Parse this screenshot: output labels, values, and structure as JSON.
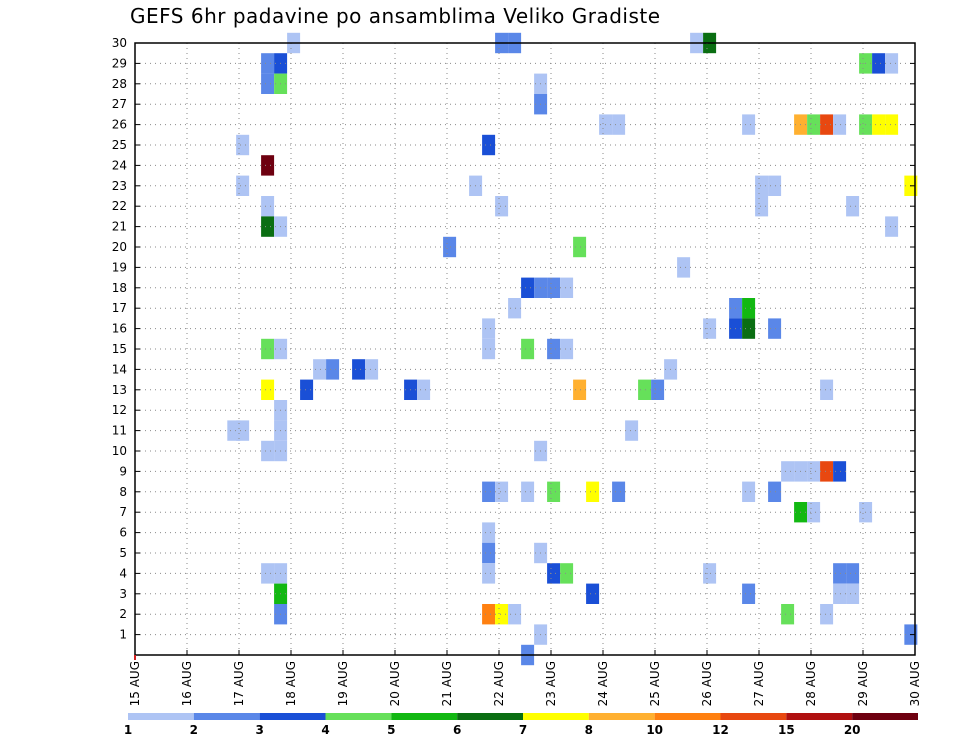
{
  "chart_data": {
    "type": "heatmap",
    "title": "GEFS 6hr padavine po ansamblima Veliko Gradiste",
    "y_ticks": [
      "1",
      "2",
      "3",
      "4",
      "5",
      "6",
      "7",
      "8",
      "9",
      "10",
      "11",
      "12",
      "13",
      "14",
      "15",
      "16",
      "17",
      "18",
      "19",
      "20",
      "21",
      "22",
      "23",
      "24",
      "25",
      "26",
      "27",
      "28",
      "29",
      "30"
    ],
    "x_ticks": [
      "15 AUG",
      "16 AUG",
      "17 AUG",
      "18 AUG",
      "19 AUG",
      "20 AUG",
      "21 AUG",
      "22 AUG",
      "23 AUG",
      "24 AUG",
      "25 AUG",
      "26 AUG",
      "27 AUG",
      "28 AUG",
      "29 AUG",
      "30 AUG"
    ],
    "xlim_days": [
      15,
      30
    ],
    "ylim": [
      0,
      30
    ],
    "grid": true,
    "legend": {
      "placement": "bottom",
      "labels": [
        "1",
        "2",
        "3",
        "4",
        "5",
        "6",
        "7",
        "8",
        "10",
        "12",
        "15",
        "20"
      ],
      "colors": [
        "#aec4f4",
        "#5a87e8",
        "#1a4fd6",
        "#66e05a",
        "#12b812",
        "#0a6e12",
        "#ffff00",
        "#ffb030",
        "#ff8010",
        "#e84810",
        "#b01010",
        "#6e0010"
      ]
    },
    "cells": [
      {
        "x": 17.07,
        "y": 23,
        "c": 0
      },
      {
        "x": 17.07,
        "y": 25,
        "c": 0
      },
      {
        "x": 16.9,
        "y": 11,
        "c": 0
      },
      {
        "x": 17.07,
        "y": 11,
        "c": 0
      },
      {
        "x": 17.55,
        "y": 29,
        "c": 1
      },
      {
        "x": 17.55,
        "y": 28,
        "c": 1
      },
      {
        "x": 17.55,
        "y": 24,
        "c": 11
      },
      {
        "x": 17.55,
        "y": 22,
        "c": 0
      },
      {
        "x": 17.55,
        "y": 21,
        "c": 5
      },
      {
        "x": 17.55,
        "y": 15,
        "c": 3
      },
      {
        "x": 17.55,
        "y": 13,
        "c": 6
      },
      {
        "x": 17.55,
        "y": 10,
        "c": 0
      },
      {
        "x": 17.55,
        "y": 4,
        "c": 0
      },
      {
        "x": 17.8,
        "y": 29,
        "c": 2
      },
      {
        "x": 17.8,
        "y": 28,
        "c": 3
      },
      {
        "x": 17.8,
        "y": 21,
        "c": 0
      },
      {
        "x": 17.8,
        "y": 15,
        "c": 0
      },
      {
        "x": 17.8,
        "y": 12,
        "c": 0
      },
      {
        "x": 17.8,
        "y": 11,
        "c": 0
      },
      {
        "x": 17.8,
        "y": 10,
        "c": 0
      },
      {
        "x": 17.8,
        "y": 4,
        "c": 0
      },
      {
        "x": 17.8,
        "y": 3,
        "c": 4
      },
      {
        "x": 17.8,
        "y": 2,
        "c": 1
      },
      {
        "x": 18.05,
        "y": 30,
        "c": 0
      },
      {
        "x": 18.3,
        "y": 13,
        "c": 2
      },
      {
        "x": 18.55,
        "y": 14,
        "c": 0
      },
      {
        "x": 18.8,
        "y": 14,
        "c": 1
      },
      {
        "x": 19.3,
        "y": 14,
        "c": 2
      },
      {
        "x": 19.55,
        "y": 14,
        "c": 0
      },
      {
        "x": 20.3,
        "y": 13,
        "c": 2
      },
      {
        "x": 20.55,
        "y": 13,
        "c": 0
      },
      {
        "x": 21.05,
        "y": 20,
        "c": 1
      },
      {
        "x": 21.55,
        "y": 23,
        "c": 0
      },
      {
        "x": 21.8,
        "y": 25,
        "c": 2
      },
      {
        "x": 21.8,
        "y": 16,
        "c": 0
      },
      {
        "x": 21.8,
        "y": 15,
        "c": 0
      },
      {
        "x": 21.8,
        "y": 8,
        "c": 1
      },
      {
        "x": 21.8,
        "y": 6,
        "c": 0
      },
      {
        "x": 21.8,
        "y": 5,
        "c": 1
      },
      {
        "x": 21.8,
        "y": 4,
        "c": 0
      },
      {
        "x": 21.8,
        "y": 2,
        "c": 8
      },
      {
        "x": 22.05,
        "y": 30,
        "c": 1
      },
      {
        "x": 22.05,
        "y": 22,
        "c": 0
      },
      {
        "x": 22.05,
        "y": 8,
        "c": 0
      },
      {
        "x": 22.05,
        "y": 2,
        "c": 6
      },
      {
        "x": 22.3,
        "y": 30,
        "c": 1
      },
      {
        "x": 22.3,
        "y": 17,
        "c": 0
      },
      {
        "x": 22.3,
        "y": 2,
        "c": 0
      },
      {
        "x": 22.55,
        "y": 18,
        "c": 2
      },
      {
        "x": 22.55,
        "y": 15,
        "c": 3
      },
      {
        "x": 22.55,
        "y": 8,
        "c": 0
      },
      {
        "x": 22.55,
        "y": 0,
        "c": 1
      },
      {
        "x": 22.8,
        "y": 28,
        "c": 0
      },
      {
        "x": 22.8,
        "y": 27,
        "c": 1
      },
      {
        "x": 22.8,
        "y": 18,
        "c": 1
      },
      {
        "x": 22.8,
        "y": 10,
        "c": 0
      },
      {
        "x": 22.8,
        "y": 5,
        "c": 0
      },
      {
        "x": 22.8,
        "y": 1,
        "c": 0
      },
      {
        "x": 23.05,
        "y": 18,
        "c": 1
      },
      {
        "x": 23.05,
        "y": 15,
        "c": 1
      },
      {
        "x": 23.05,
        "y": 8,
        "c": 3
      },
      {
        "x": 23.05,
        "y": 4,
        "c": 2
      },
      {
        "x": 23.3,
        "y": 18,
        "c": 0
      },
      {
        "x": 23.3,
        "y": 15,
        "c": 0
      },
      {
        "x": 23.3,
        "y": 4,
        "c": 3
      },
      {
        "x": 23.55,
        "y": 20,
        "c": 3
      },
      {
        "x": 23.55,
        "y": 13,
        "c": 7
      },
      {
        "x": 23.8,
        "y": 8,
        "c": 6
      },
      {
        "x": 23.8,
        "y": 3,
        "c": 2
      },
      {
        "x": 24.05,
        "y": 26,
        "c": 0
      },
      {
        "x": 24.3,
        "y": 26,
        "c": 0
      },
      {
        "x": 24.3,
        "y": 8,
        "c": 1
      },
      {
        "x": 24.55,
        "y": 11,
        "c": 0
      },
      {
        "x": 24.8,
        "y": 13,
        "c": 3
      },
      {
        "x": 25.05,
        "y": 13,
        "c": 1
      },
      {
        "x": 25.3,
        "y": 14,
        "c": 0
      },
      {
        "x": 25.55,
        "y": 19,
        "c": 0
      },
      {
        "x": 25.8,
        "y": 30,
        "c": 0
      },
      {
        "x": 26.05,
        "y": 30,
        "c": 5
      },
      {
        "x": 26.05,
        "y": 16,
        "c": 0
      },
      {
        "x": 26.05,
        "y": 4,
        "c": 0
      },
      {
        "x": 26.55,
        "y": 17,
        "c": 1
      },
      {
        "x": 26.55,
        "y": 16,
        "c": 2
      },
      {
        "x": 26.8,
        "y": 26,
        "c": 0
      },
      {
        "x": 26.8,
        "y": 17,
        "c": 4
      },
      {
        "x": 26.8,
        "y": 16,
        "c": 5
      },
      {
        "x": 26.8,
        "y": 8,
        "c": 0
      },
      {
        "x": 26.8,
        "y": 3,
        "c": 1
      },
      {
        "x": 27.05,
        "y": 23,
        "c": 0
      },
      {
        "x": 27.05,
        "y": 22,
        "c": 0
      },
      {
        "x": 27.3,
        "y": 23,
        "c": 0
      },
      {
        "x": 27.3,
        "y": 16,
        "c": 1
      },
      {
        "x": 27.3,
        "y": 8,
        "c": 1
      },
      {
        "x": 27.55,
        "y": 9,
        "c": 0
      },
      {
        "x": 27.55,
        "y": 2,
        "c": 3
      },
      {
        "x": 27.8,
        "y": 26,
        "c": 7
      },
      {
        "x": 27.8,
        "y": 9,
        "c": 0
      },
      {
        "x": 27.8,
        "y": 7,
        "c": 4
      },
      {
        "x": 28.05,
        "y": 26,
        "c": 3
      },
      {
        "x": 28.05,
        "y": 9,
        "c": 0
      },
      {
        "x": 28.05,
        "y": 7,
        "c": 0
      },
      {
        "x": 28.3,
        "y": 26,
        "c": 9
      },
      {
        "x": 28.3,
        "y": 13,
        "c": 0
      },
      {
        "x": 28.3,
        "y": 9,
        "c": 9
      },
      {
        "x": 28.3,
        "y": 2,
        "c": 0
      },
      {
        "x": 28.55,
        "y": 26,
        "c": 0
      },
      {
        "x": 28.55,
        "y": 9,
        "c": 2
      },
      {
        "x": 28.55,
        "y": 4,
        "c": 1
      },
      {
        "x": 28.55,
        "y": 3,
        "c": 0
      },
      {
        "x": 28.8,
        "y": 22,
        "c": 0
      },
      {
        "x": 28.8,
        "y": 4,
        "c": 1
      },
      {
        "x": 28.8,
        "y": 3,
        "c": 0
      },
      {
        "x": 29.05,
        "y": 29,
        "c": 3
      },
      {
        "x": 29.05,
        "y": 26,
        "c": 3
      },
      {
        "x": 29.05,
        "y": 7,
        "c": 0
      },
      {
        "x": 29.3,
        "y": 29,
        "c": 2
      },
      {
        "x": 29.3,
        "y": 26,
        "c": 6
      },
      {
        "x": 29.55,
        "y": 29,
        "c": 0
      },
      {
        "x": 29.55,
        "y": 26,
        "c": 6
      },
      {
        "x": 29.55,
        "y": 21,
        "c": 0
      },
      {
        "x": 29.92,
        "y": 23,
        "c": 6
      },
      {
        "x": 29.92,
        "y": 1,
        "c": 1
      }
    ]
  }
}
